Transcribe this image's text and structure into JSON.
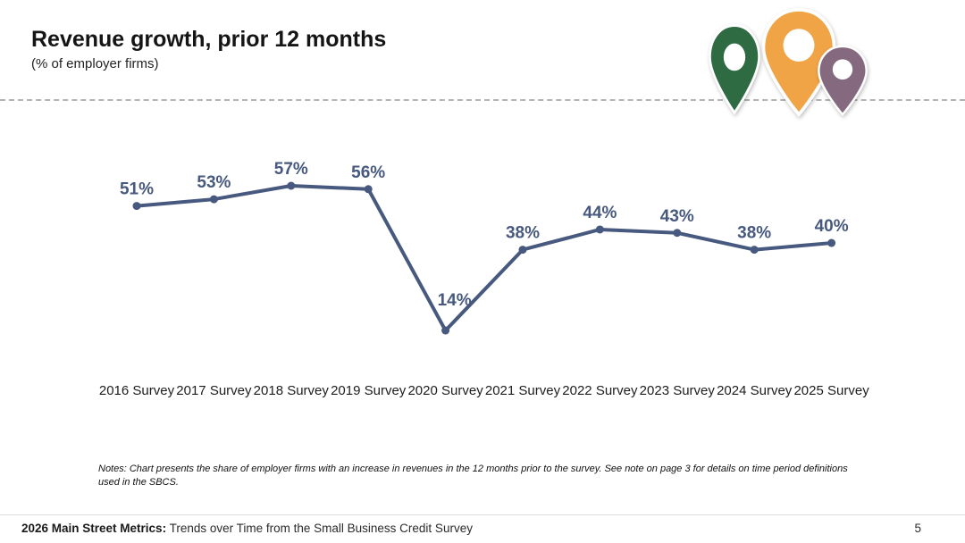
{
  "slide": {
    "title": "Revenue growth, prior 12 months",
    "subtitle": "(% of employer firms)",
    "notes": "Notes: Chart presents the share of employer firms with an increase in revenues in the 12 months prior to the survey. See note on page 3 for details on time period definitions used in the SBCS.",
    "footer_bold": "2026 Main Street Metrics:",
    "footer_rest": " Trends over Time from the Small Business Credit Survey",
    "page_number": "5"
  },
  "logo": {
    "pins": [
      {
        "name": "map-pin-green",
        "color": "#2e6b43"
      },
      {
        "name": "map-pin-orange",
        "color": "#f0a446"
      },
      {
        "name": "map-pin-purple",
        "color": "#85697f"
      }
    ]
  },
  "chart_data": {
    "type": "line",
    "title": "Revenue growth, prior 12 months",
    "subtitle": "(% of employer firms)",
    "categories": [
      "2016 Survey",
      "2017 Survey",
      "2018 Survey",
      "2019 Survey",
      "2020 Survey",
      "2021 Survey",
      "2022 Survey",
      "2023 Survey",
      "2024 Survey",
      "2025 Survey"
    ],
    "values": [
      51,
      53,
      57,
      56,
      14,
      38,
      44,
      43,
      38,
      40
    ],
    "point_labels": [
      "51%",
      "53%",
      "57%",
      "56%",
      "14%",
      "38%",
      "44%",
      "43%",
      "38%",
      "40%"
    ],
    "line_color": "#47597e",
    "axis_label_color": "#1d1d1d",
    "xlabel": "",
    "ylabel": "% of employer firms",
    "ylim": [
      0,
      70
    ],
    "grid": false,
    "legend": false
  }
}
